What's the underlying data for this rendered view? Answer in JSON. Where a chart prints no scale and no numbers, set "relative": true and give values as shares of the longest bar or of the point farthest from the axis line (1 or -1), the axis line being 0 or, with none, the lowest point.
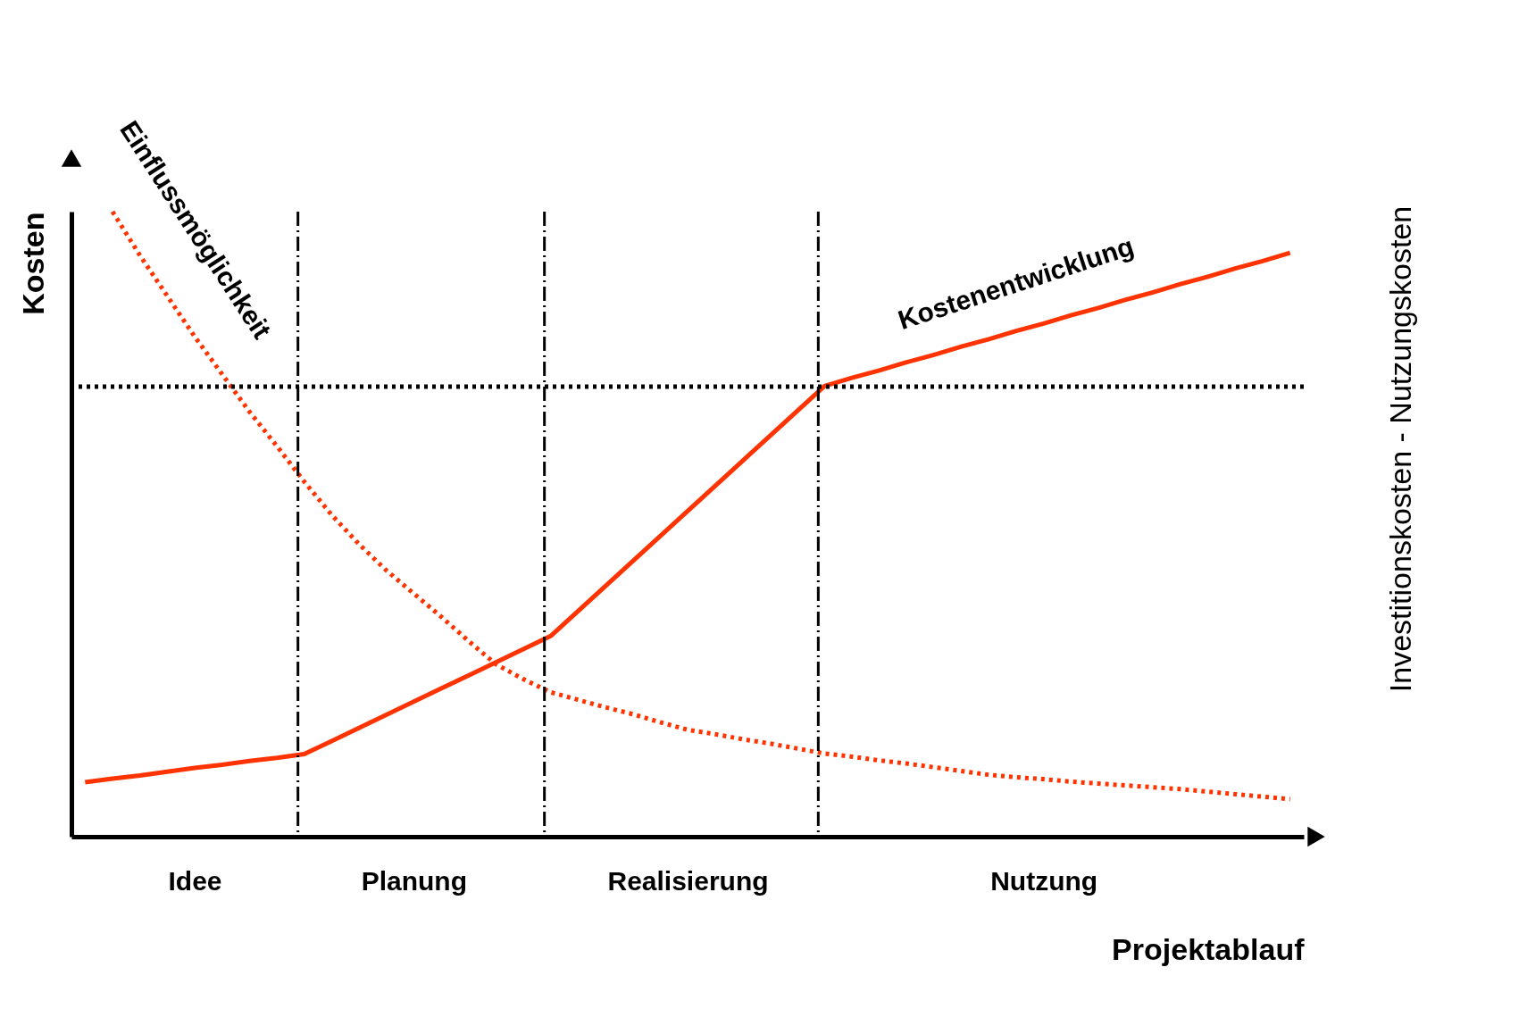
{
  "chart_data": {
    "type": "line",
    "relative": true,
    "xlabel": "Projektablauf",
    "ylabel": "Kosten",
    "y2label": "Investitionskosten - Nutzungskosten",
    "categories": [
      null,
      null,
      null,
      null,
      "Idee",
      null,
      null,
      null,
      null,
      null,
      null,
      null,
      "Planung",
      null,
      null,
      null,
      null,
      null,
      null,
      null,
      null,
      null,
      "Realisierung",
      null,
      null,
      null,
      null,
      null,
      null,
      null,
      null,
      null,
      null,
      null,
      null,
      "Nutzung",
      null,
      null,
      null,
      null,
      null,
      null,
      null,
      null,
      null
    ],
    "series": [
      {
        "name": "Kostenentwicklung",
        "color": "#ff3300",
        "line_style": "solid",
        "values": [
          0.087,
          0.093,
          0.098,
          0.104,
          0.11,
          0.115,
          0.121,
          0.126,
          0.132,
          0.153,
          0.174,
          0.195,
          0.216,
          0.237,
          0.258,
          0.279,
          0.3,
          0.321,
          0.361,
          0.401,
          0.441,
          0.481,
          0.521,
          0.561,
          0.601,
          0.641,
          0.681,
          0.721,
          0.734,
          0.746,
          0.759,
          0.771,
          0.784,
          0.796,
          0.809,
          0.821,
          0.834,
          0.846,
          0.859,
          0.871,
          0.884,
          0.896,
          0.909,
          0.921,
          0.934
        ]
      },
      {
        "name": "Einflussmöglichkeit",
        "color": "#ff3300",
        "line_style": "dotted",
        "values": [
          null,
          1.0,
          0.93,
          0.865,
          0.8,
          0.74,
          0.68,
          0.625,
          0.568,
          0.515,
          0.468,
          0.426,
          0.389,
          0.352,
          0.313,
          0.276,
          0.252,
          0.231,
          0.219,
          0.207,
          0.196,
          0.183,
          0.171,
          0.164,
          0.156,
          0.149,
          0.141,
          0.133,
          0.128,
          0.122,
          0.117,
          0.111,
          0.105,
          0.099,
          0.095,
          0.092,
          0.088,
          0.085,
          0.082,
          0.079,
          0.076,
          0.072,
          0.068,
          0.064,
          0.06
        ]
      }
    ],
    "ref_lines": [
      {
        "axis": "y",
        "value": 0.72,
        "color": "#000000",
        "line_style": "dotted"
      }
    ],
    "legend": false,
    "grid": false,
    "marker": "none"
  }
}
